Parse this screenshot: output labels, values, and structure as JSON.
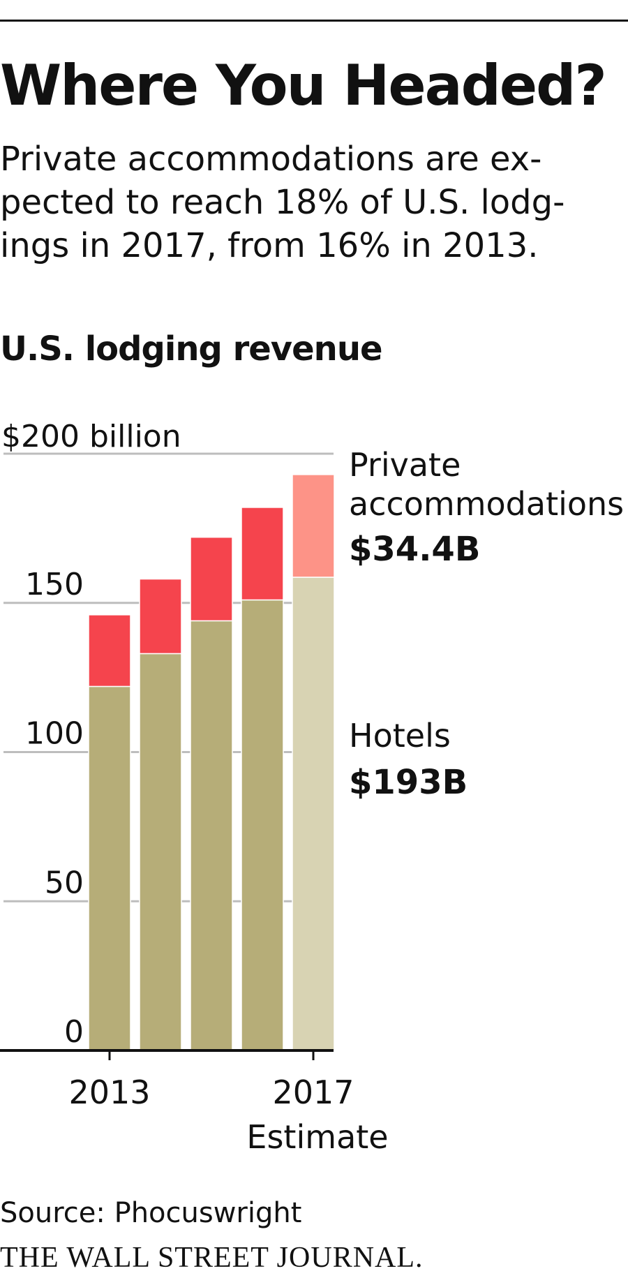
{
  "headline": "Where You Headed?",
  "dek": [
    "Private accommodations are ex-",
    "pected to reach 18% of U.S. lodg-",
    "ings in 2017, from 16% in 2013."
  ],
  "source": "Source: Phocuswright",
  "publisher": "THE WALL STREET JOURNAL.",
  "chart_data": {
    "type": "bar",
    "stacked": true,
    "title": "U.S. lodging revenue",
    "categories": [
      "2013",
      "2014",
      "2015",
      "2016",
      "2017"
    ],
    "x_tick_labels": [
      "2013",
      "",
      "",
      "",
      "2017"
    ],
    "x_tick_sublabels": [
      "",
      "",
      "",
      "",
      "Estimate"
    ],
    "estimate_index": 4,
    "y_ticks": [
      0,
      50,
      100,
      150,
      200
    ],
    "y_tick_labels": [
      "0",
      "50",
      "100",
      "150",
      "$200 billion"
    ],
    "ylim": [
      0,
      200
    ],
    "grid": true,
    "series": [
      {
        "name": "Hotels",
        "values": [
          122,
          133,
          144,
          151,
          158.6
        ],
        "color": "#b6ad78",
        "estimate_color": "#d8d3b3",
        "label": [
          "Hotels",
          "$193B"
        ]
      },
      {
        "name": "Private accommodations",
        "values": [
          24,
          25,
          28,
          31,
          34.4
        ],
        "color": "#f5444d",
        "estimate_color": "#fd9387",
        "label": [
          "Private",
          "accommodations",
          "$34.4B"
        ]
      }
    ]
  }
}
